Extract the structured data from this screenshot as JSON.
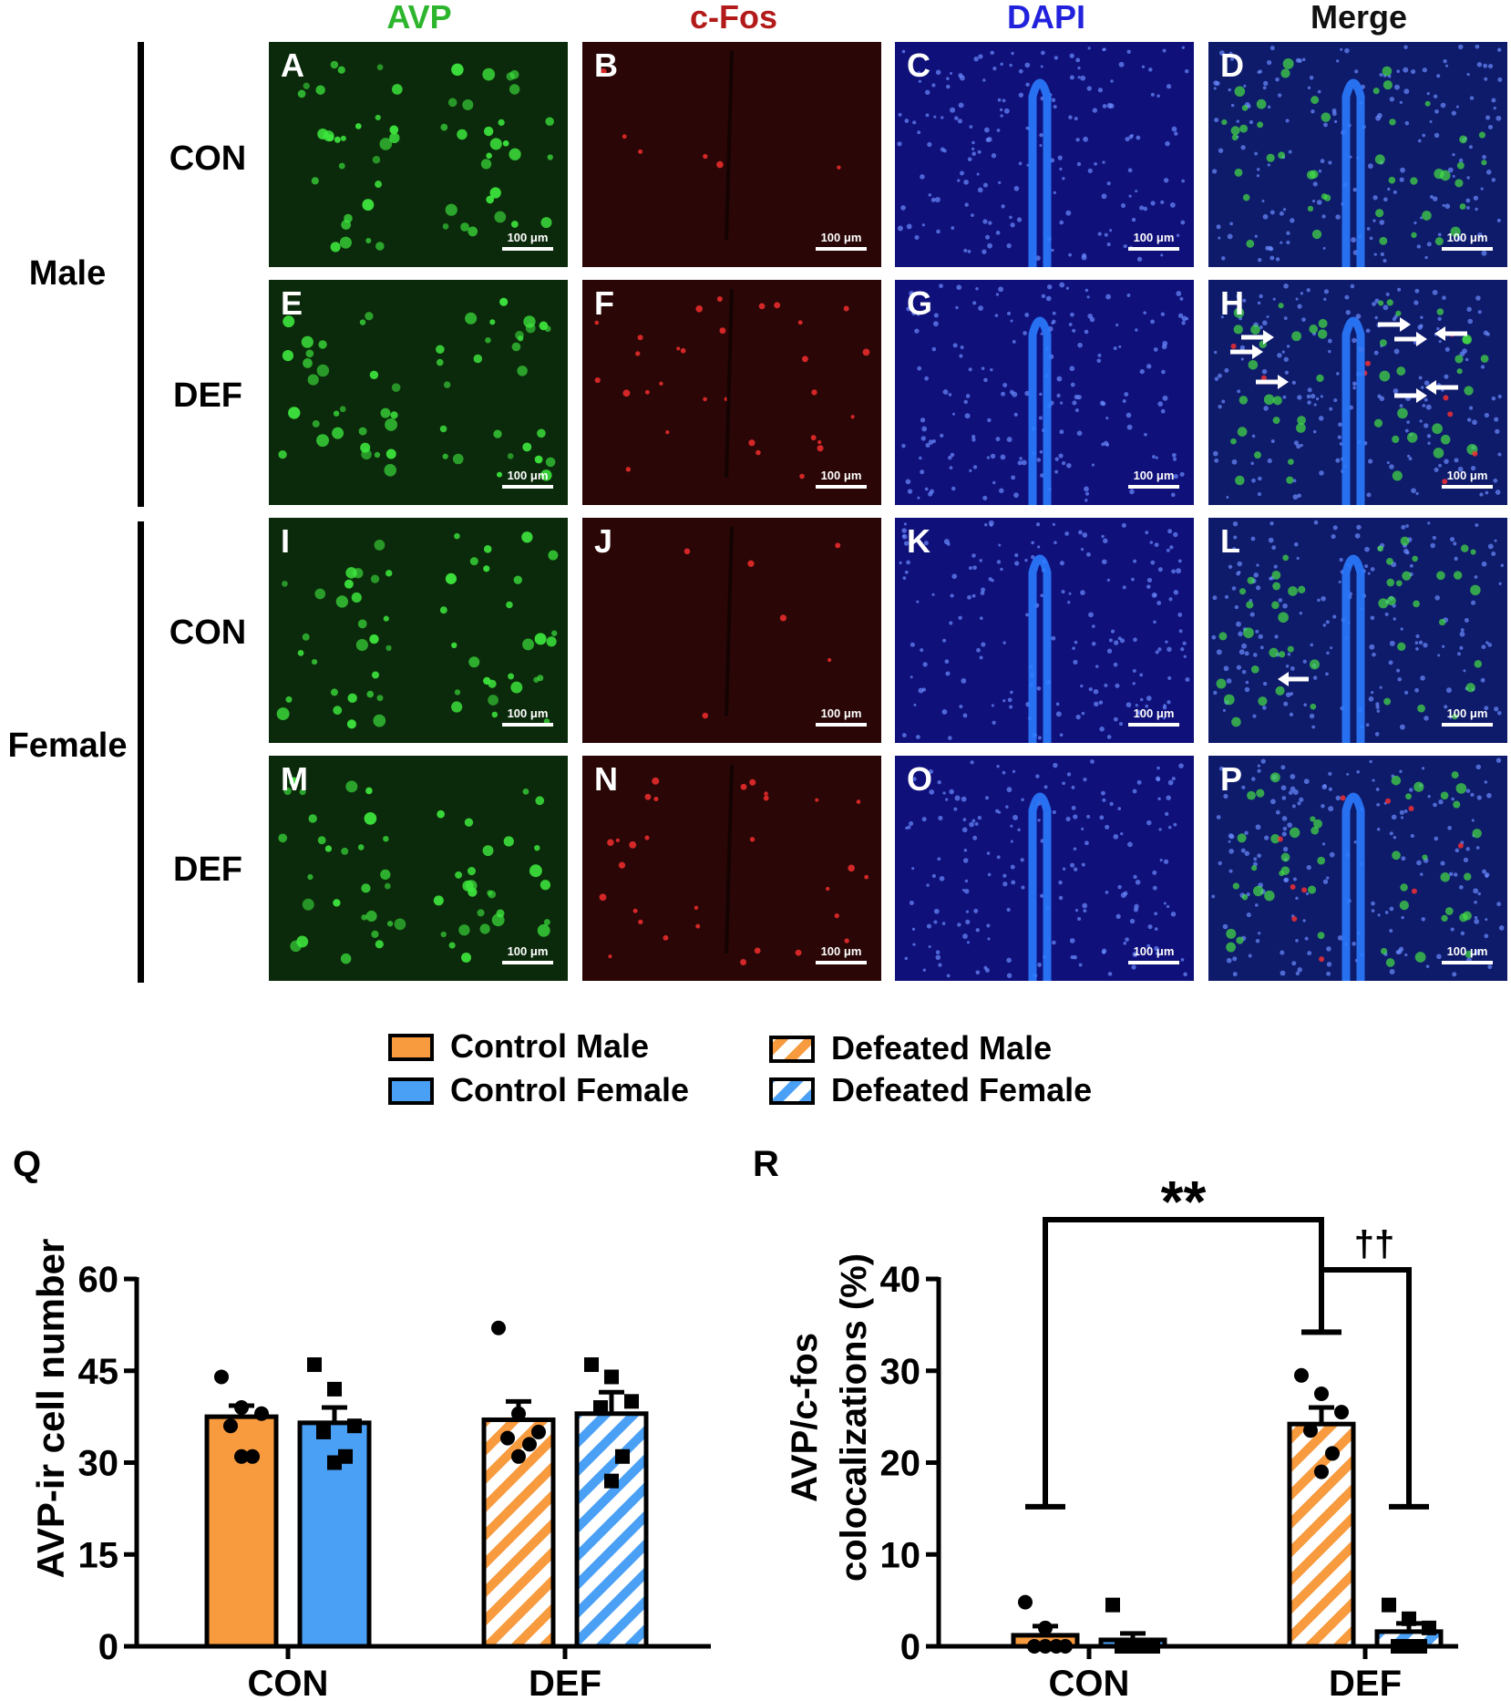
{
  "columns": [
    {
      "label": "AVP",
      "color": "#2db52d"
    },
    {
      "label": "c-Fos",
      "color": "#b31b1b"
    },
    {
      "label": "DAPI",
      "color": "#2222dd"
    },
    {
      "label": "Merge",
      "color": "#111111"
    }
  ],
  "sex_groups": [
    "Male",
    "Female"
  ],
  "conditions": [
    "CON",
    "DEF",
    "CON",
    "DEF"
  ],
  "panel_letters": [
    "A",
    "B",
    "C",
    "D",
    "E",
    "F",
    "G",
    "H",
    "I",
    "J",
    "K",
    "L",
    "M",
    "N",
    "O",
    "P"
  ],
  "scale_bar": "100 μm",
  "legend": [
    {
      "label": "Control Male",
      "color": "#f89a3e",
      "hatched": false
    },
    {
      "label": "Control Female",
      "color": "#4aa0f5",
      "hatched": false
    },
    {
      "label": "Defeated Male",
      "color": "#f89a3e",
      "hatched": true
    },
    {
      "label": "Defeated Female",
      "color": "#4aa0f5",
      "hatched": true
    }
  ],
  "colors": {
    "orange": "#f89a3e",
    "blue": "#4aa0f5"
  },
  "chart_data": [
    {
      "type": "bar",
      "panel": "Q",
      "ylabel": "AVP-ir cell number",
      "ylim": [
        0,
        60
      ],
      "yticks": [
        "0",
        "15",
        "30",
        "45",
        "60"
      ],
      "categories": [
        "CON",
        "DEF"
      ],
      "series": [
        {
          "name": "Control Male",
          "values": [
            37.5,
            null
          ],
          "sem": [
            1.8,
            null
          ],
          "points": [
            44,
            39,
            38,
            36,
            31,
            31
          ]
        },
        {
          "name": "Control Female",
          "values": [
            36.5,
            null
          ],
          "sem": [
            2.5,
            null
          ],
          "points": [
            46,
            42,
            36,
            35,
            31,
            30
          ]
        },
        {
          "name": "Defeated Male",
          "values": [
            null,
            37.0
          ],
          "sem": [
            null,
            3.0
          ],
          "points": [
            52,
            38,
            35,
            34,
            33,
            31
          ]
        },
        {
          "name": "Defeated Female",
          "values": [
            null,
            38.0
          ],
          "sem": [
            null,
            3.5
          ],
          "points": [
            46,
            44,
            40,
            39,
            31,
            27
          ]
        }
      ]
    },
    {
      "type": "bar",
      "panel": "R",
      "ylabel_lines": [
        "AVP/c-fos",
        "colocalizations (%)"
      ],
      "ylim": [
        0,
        40
      ],
      "yticks": [
        "0",
        "10",
        "20",
        "30",
        "40"
      ],
      "categories": [
        "CON",
        "DEF"
      ],
      "series": [
        {
          "name": "Control Male",
          "values": [
            1.2,
            null
          ],
          "sem": [
            1.0,
            null
          ],
          "points": [
            4.8,
            2.0,
            0,
            0,
            0,
            0
          ]
        },
        {
          "name": "Control Female",
          "values": [
            0.7,
            null
          ],
          "sem": [
            0.7,
            null
          ],
          "points": [
            4.5,
            0,
            0,
            0,
            0,
            0
          ]
        },
        {
          "name": "Defeated Male",
          "values": [
            null,
            24.2
          ],
          "sem": [
            null,
            1.8
          ],
          "points": [
            29.5,
            27.5,
            25.5,
            23.5,
            21.0,
            19.0
          ]
        },
        {
          "name": "Defeated Female",
          "values": [
            null,
            1.6
          ],
          "sem": [
            null,
            0.9
          ],
          "points": [
            4.5,
            3.0,
            2.0,
            0,
            0,
            0
          ]
        }
      ],
      "annotations": [
        {
          "label": "**",
          "between": [
            "Control Male",
            "Defeated Male"
          ]
        },
        {
          "label": "††",
          "between": [
            "Defeated Male",
            "Defeated Female"
          ]
        }
      ]
    }
  ]
}
